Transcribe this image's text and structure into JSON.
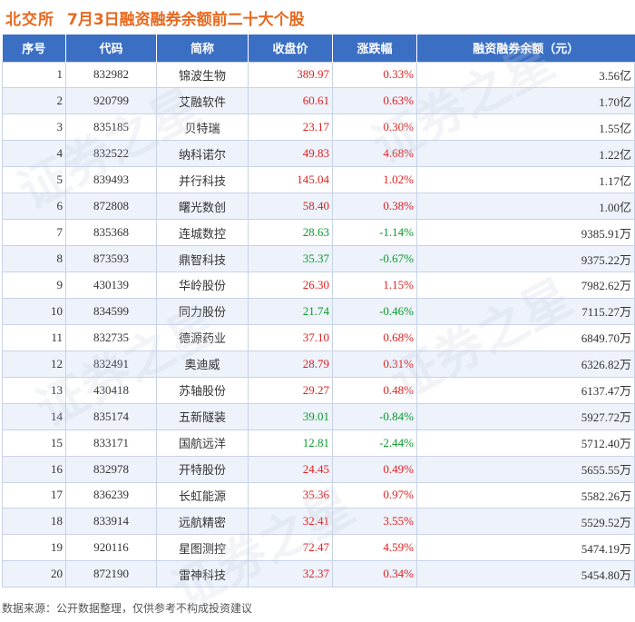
{
  "header": {
    "brand": "北交所",
    "title": "7月3日融资融券余额前二十大个股"
  },
  "table": {
    "columns": [
      "序号",
      "代码",
      "简称",
      "收盘价",
      "涨跌幅",
      "融资融券余额（元）"
    ],
    "rows": [
      {
        "rank": "1",
        "code": "832982",
        "name": "锦波生物",
        "close": "389.97",
        "change": "0.33%",
        "dir": "up",
        "balance": "3.56亿"
      },
      {
        "rank": "2",
        "code": "920799",
        "name": "艾融软件",
        "close": "60.61",
        "change": "0.63%",
        "dir": "up",
        "balance": "1.70亿"
      },
      {
        "rank": "3",
        "code": "835185",
        "name": "贝特瑞",
        "close": "23.17",
        "change": "0.30%",
        "dir": "up",
        "balance": "1.55亿"
      },
      {
        "rank": "4",
        "code": "832522",
        "name": "纳科诺尔",
        "close": "49.83",
        "change": "4.68%",
        "dir": "up",
        "balance": "1.22亿"
      },
      {
        "rank": "5",
        "code": "839493",
        "name": "并行科技",
        "close": "145.04",
        "change": "1.02%",
        "dir": "up",
        "balance": "1.17亿"
      },
      {
        "rank": "6",
        "code": "872808",
        "name": "曙光数创",
        "close": "58.40",
        "change": "0.38%",
        "dir": "up",
        "balance": "1.00亿"
      },
      {
        "rank": "7",
        "code": "835368",
        "name": "连城数控",
        "close": "28.63",
        "change": "-1.14%",
        "dir": "down",
        "balance": "9385.91万"
      },
      {
        "rank": "8",
        "code": "873593",
        "name": "鼎智科技",
        "close": "35.37",
        "change": "-0.67%",
        "dir": "down",
        "balance": "9375.22万"
      },
      {
        "rank": "9",
        "code": "430139",
        "name": "华岭股份",
        "close": "26.30",
        "change": "1.15%",
        "dir": "up",
        "balance": "7982.62万"
      },
      {
        "rank": "10",
        "code": "834599",
        "name": "同力股份",
        "close": "21.74",
        "change": "-0.46%",
        "dir": "down",
        "balance": "7115.27万"
      },
      {
        "rank": "11",
        "code": "832735",
        "name": "德源药业",
        "close": "37.10",
        "change": "0.68%",
        "dir": "up",
        "balance": "6849.70万"
      },
      {
        "rank": "12",
        "code": "832491",
        "name": "奥迪威",
        "close": "28.79",
        "change": "0.31%",
        "dir": "up",
        "balance": "6326.82万"
      },
      {
        "rank": "13",
        "code": "430418",
        "name": "苏轴股份",
        "close": "29.27",
        "change": "0.48%",
        "dir": "up",
        "balance": "6137.47万"
      },
      {
        "rank": "14",
        "code": "835174",
        "name": "五新隧装",
        "close": "39.01",
        "change": "-0.84%",
        "dir": "down",
        "balance": "5927.72万"
      },
      {
        "rank": "15",
        "code": "833171",
        "name": "国航远洋",
        "close": "12.81",
        "change": "-2.44%",
        "dir": "down",
        "balance": "5712.40万"
      },
      {
        "rank": "16",
        "code": "832978",
        "name": "开特股份",
        "close": "24.45",
        "change": "0.49%",
        "dir": "up",
        "balance": "5655.55万"
      },
      {
        "rank": "17",
        "code": "836239",
        "name": "长虹能源",
        "close": "35.36",
        "change": "0.97%",
        "dir": "up",
        "balance": "5582.26万"
      },
      {
        "rank": "18",
        "code": "833914",
        "name": "远航精密",
        "close": "32.41",
        "change": "3.55%",
        "dir": "up",
        "balance": "5529.52万"
      },
      {
        "rank": "19",
        "code": "920116",
        "name": "星图测控",
        "close": "72.47",
        "change": "4.59%",
        "dir": "up",
        "balance": "5474.19万"
      },
      {
        "rank": "20",
        "code": "872190",
        "name": "雷神科技",
        "close": "32.37",
        "change": "0.34%",
        "dir": "up",
        "balance": "5454.80万"
      }
    ]
  },
  "footer": {
    "source": "数据来源：公开数据整理，仅供参考不构成投资建议"
  },
  "watermark": {
    "text": "证券之星"
  },
  "colors": {
    "header_bg": "#3b6fc4",
    "title": "#e8681e",
    "up": "#e02020",
    "down": "#0a9a2a"
  }
}
